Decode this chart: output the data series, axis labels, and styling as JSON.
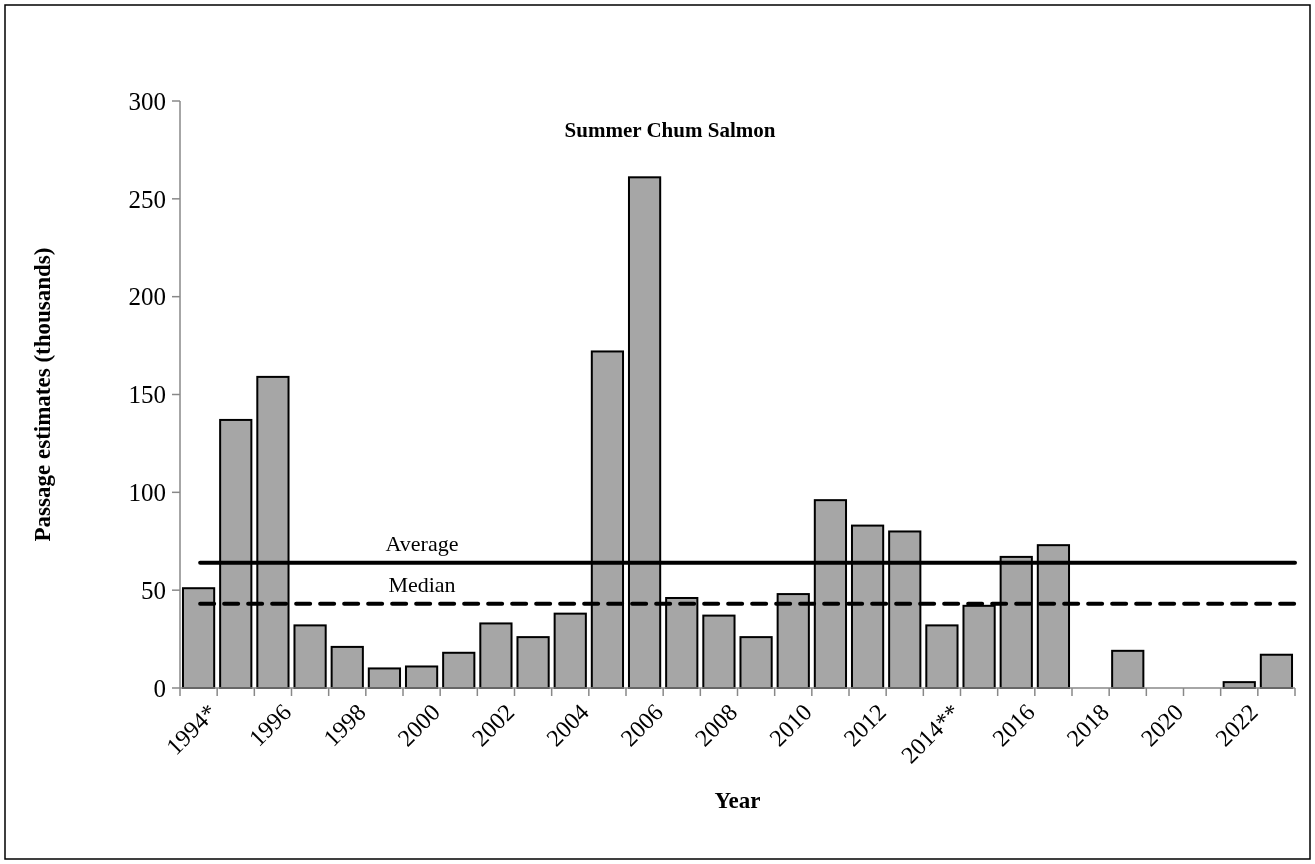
{
  "chart_data": {
    "type": "bar",
    "title": "Summer Chum Salmon",
    "xlabel": "Year",
    "ylabel": "Passage estimates (thousands)",
    "categories": [
      "1994*",
      null,
      "1996",
      null,
      "1998",
      null,
      "2000",
      null,
      "2002",
      null,
      "2004",
      null,
      "2006",
      null,
      "2008",
      null,
      "2010",
      null,
      "2012",
      null,
      "2014**",
      null,
      "2016",
      null,
      "2018",
      null,
      "2020",
      null,
      "2022",
      null
    ],
    "values": [
      51,
      137,
      159,
      32,
      21,
      10,
      11,
      18,
      33,
      26,
      38,
      172,
      261,
      46,
      37,
      26,
      48,
      96,
      83,
      80,
      32,
      42,
      67,
      73,
      null,
      19,
      null,
      null,
      3,
      17
    ],
    "color": "#a6a6a6",
    "ylim": [
      0,
      300
    ],
    "yticks": [
      0,
      50,
      100,
      150,
      200,
      250,
      300
    ],
    "ref_lines": [
      {
        "axis": "y",
        "value": 64,
        "label": "Average",
        "color": "#000000",
        "line_style": "solid"
      },
      {
        "axis": "y",
        "value": 43,
        "label": "Median",
        "color": "#000000",
        "line_style": "dashed"
      }
    ],
    "grid": false
  }
}
